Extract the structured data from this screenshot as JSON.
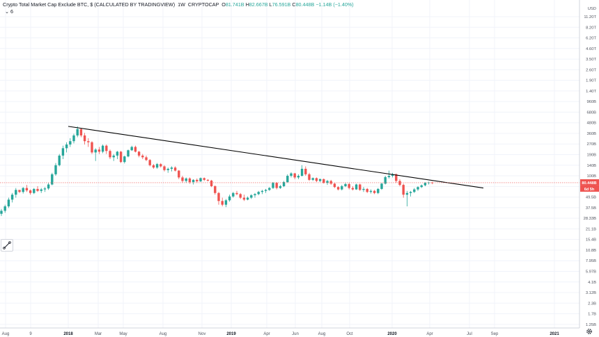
{
  "header": {
    "title": "Crypto Total Market Cap Exclude BTC, $ (CALCULATED BY TRADINGVIEW)",
    "interval": "1W",
    "exchange": "CRYPTOCAP",
    "ohlc": {
      "open_label": "O",
      "open": "81.741B",
      "high_label": "H",
      "high": "82.667B",
      "low_label": "L",
      "low": "76.591B",
      "close_label": "C",
      "close": "80.448B",
      "change": "−1.14B (−1.40%)"
    },
    "indicator_count": "6",
    "currency": "USD"
  },
  "price_scale": {
    "labels": [
      "11.20T",
      "8.20T",
      "6.20T",
      "4.60T",
      "3.50T",
      "2.60T",
      "1.90T",
      "1.40T",
      "960B",
      "680B",
      "480B",
      "360B",
      "270B",
      "190B",
      "140B",
      "100B",
      "65.5B",
      "49.5B",
      "37.5B",
      "28.33B",
      "21.1B",
      "15.4B",
      "10.8B",
      "7.95B",
      "5.97B",
      "4.1B",
      "3.12B",
      "2.3B",
      "1.7B",
      "1.25B"
    ],
    "price_badge": "80.448B",
    "countdown_badge": "6d 5h",
    "last_price": 80.448
  },
  "time_scale": {
    "labels": [
      {
        "text": "Aug",
        "bold": false
      },
      {
        "text": "9",
        "bold": false
      },
      {
        "text": "2018",
        "bold": true
      },
      {
        "text": "Mar",
        "bold": false
      },
      {
        "text": "May",
        "bold": false
      },
      {
        "text": "Aug",
        "bold": false
      },
      {
        "text": "Nov",
        "bold": false
      },
      {
        "text": "2019",
        "bold": true
      },
      {
        "text": "Apr",
        "bold": false
      },
      {
        "text": "Jun",
        "bold": false
      },
      {
        "text": "Aug",
        "bold": false
      },
      {
        "text": "Oct",
        "bold": false
      },
      {
        "text": "2020",
        "bold": true
      },
      {
        "text": "Apr",
        "bold": false
      },
      {
        "text": "Jul",
        "bold": false
      },
      {
        "text": "Sep",
        "bold": false
      },
      {
        "text": "2021",
        "bold": true
      }
    ]
  },
  "colors": {
    "up": "#26a69a",
    "down": "#ef5350",
    "trendline": "#000000",
    "price_line": "#ef5350",
    "grid": "#f0f3fa"
  },
  "icons": {
    "drawing_tool": "trendline-tool-icon",
    "settings": "gear-icon"
  },
  "chart_data": {
    "type": "candlestick",
    "scale": "log",
    "interval": "1W",
    "series": [
      {
        "name": "Crypto Total Market Cap Exclude BTC",
        "ohlc": [
          [
            30,
            35,
            28,
            33
          ],
          [
            33,
            40,
            31,
            38
          ],
          [
            38,
            50,
            36,
            47
          ],
          [
            47,
            58,
            43,
            55
          ],
          [
            55,
            68,
            50,
            64
          ],
          [
            64,
            62,
            58,
            60
          ],
          [
            60,
            70,
            57,
            68
          ],
          [
            68,
            75,
            60,
            63
          ],
          [
            63,
            65,
            55,
            58
          ],
          [
            58,
            68,
            56,
            66
          ],
          [
            66,
            72,
            60,
            62
          ],
          [
            62,
            68,
            58,
            65
          ],
          [
            65,
            70,
            60,
            67
          ],
          [
            67,
            80,
            64,
            76
          ],
          [
            76,
            110,
            74,
            105
          ],
          [
            105,
            150,
            100,
            140
          ],
          [
            140,
            200,
            135,
            190
          ],
          [
            190,
            260,
            170,
            240
          ],
          [
            240,
            290,
            210,
            270
          ],
          [
            270,
            330,
            250,
            300
          ],
          [
            300,
            380,
            280,
            360
          ],
          [
            360,
            480,
            340,
            440
          ],
          [
            440,
            450,
            340,
            360
          ],
          [
            360,
            390,
            270,
            300
          ],
          [
            300,
            330,
            250,
            290
          ],
          [
            290,
            300,
            200,
            210
          ],
          [
            210,
            240,
            160,
            230
          ],
          [
            230,
            250,
            200,
            215
          ],
          [
            215,
            270,
            205,
            260
          ],
          [
            260,
            270,
            200,
            220
          ],
          [
            220,
            230,
            170,
            180
          ],
          [
            180,
            200,
            160,
            190
          ],
          [
            190,
            220,
            170,
            215
          ],
          [
            215,
            220,
            150,
            155
          ],
          [
            155,
            190,
            148,
            185
          ],
          [
            185,
            230,
            180,
            225
          ],
          [
            225,
            260,
            220,
            250
          ],
          [
            250,
            260,
            210,
            215
          ],
          [
            215,
            220,
            180,
            190
          ],
          [
            190,
            200,
            170,
            180
          ],
          [
            180,
            190,
            160,
            165
          ],
          [
            165,
            170,
            135,
            140
          ],
          [
            140,
            145,
            125,
            130
          ],
          [
            130,
            150,
            125,
            145
          ],
          [
            145,
            150,
            130,
            135
          ],
          [
            135,
            140,
            115,
            120
          ],
          [
            120,
            130,
            110,
            125
          ],
          [
            125,
            135,
            115,
            130
          ],
          [
            130,
            135,
            115,
            118
          ],
          [
            118,
            120,
            90,
            95
          ],
          [
            95,
            100,
            80,
            85
          ],
          [
            85,
            95,
            80,
            92
          ],
          [
            92,
            95,
            78,
            82
          ],
          [
            82,
            90,
            76,
            88
          ],
          [
            88,
            92,
            80,
            84
          ],
          [
            84,
            95,
            82,
            93
          ],
          [
            93,
            95,
            85,
            88
          ],
          [
            88,
            90,
            84,
            86
          ],
          [
            86,
            88,
            70,
            72
          ],
          [
            72,
            74,
            55,
            58
          ],
          [
            58,
            60,
            40,
            45
          ],
          [
            45,
            50,
            38,
            40
          ],
          [
            40,
            48,
            37,
            46
          ],
          [
            46,
            55,
            44,
            52
          ],
          [
            52,
            60,
            50,
            58
          ],
          [
            58,
            62,
            54,
            56
          ],
          [
            56,
            58,
            48,
            50
          ],
          [
            50,
            55,
            45,
            47
          ],
          [
            47,
            52,
            46,
            50
          ],
          [
            50,
            56,
            48,
            54
          ],
          [
            54,
            58,
            50,
            56
          ],
          [
            56,
            62,
            54,
            60
          ],
          [
            60,
            64,
            56,
            62
          ],
          [
            62,
            66,
            58,
            64
          ],
          [
            64,
            70,
            62,
            68
          ],
          [
            68,
            82,
            66,
            80
          ],
          [
            80,
            82,
            65,
            68
          ],
          [
            68,
            75,
            66,
            72
          ],
          [
            72,
            85,
            70,
            82
          ],
          [
            82,
            105,
            80,
            100
          ],
          [
            100,
            112,
            95,
            108
          ],
          [
            108,
            110,
            90,
            95
          ],
          [
            95,
            105,
            90,
            100
          ],
          [
            100,
            140,
            98,
            125
          ],
          [
            125,
            135,
            100,
            105
          ],
          [
            105,
            110,
            85,
            88
          ],
          [
            88,
            95,
            85,
            93
          ],
          [
            93,
            95,
            82,
            85
          ],
          [
            85,
            92,
            82,
            90
          ],
          [
            90,
            92,
            78,
            80
          ],
          [
            80,
            88,
            75,
            85
          ],
          [
            85,
            88,
            75,
            78
          ],
          [
            78,
            80,
            68,
            70
          ],
          [
            70,
            72,
            63,
            65
          ],
          [
            65,
            75,
            63,
            72
          ],
          [
            72,
            80,
            70,
            77
          ],
          [
            77,
            80,
            65,
            68
          ],
          [
            68,
            72,
            63,
            65
          ],
          [
            65,
            78,
            64,
            76
          ],
          [
            76,
            78,
            62,
            64
          ],
          [
            64,
            70,
            60,
            66
          ],
          [
            66,
            68,
            58,
            60
          ],
          [
            60,
            65,
            57,
            62
          ],
          [
            62,
            64,
            56,
            58
          ],
          [
            58,
            68,
            56,
            66
          ],
          [
            66,
            80,
            64,
            78
          ],
          [
            78,
            100,
            76,
            96
          ],
          [
            96,
            118,
            92,
            100
          ],
          [
            100,
            110,
            95,
            105
          ],
          [
            105,
            108,
            80,
            85
          ],
          [
            85,
            90,
            72,
            75
          ],
          [
            75,
            78,
            50,
            55
          ],
          [
            55,
            62,
            38,
            58
          ],
          [
            58,
            62,
            52,
            60
          ],
          [
            60,
            68,
            58,
            65
          ],
          [
            65,
            72,
            62,
            70
          ],
          [
            70,
            76,
            68,
            74
          ],
          [
            74,
            82,
            72,
            80
          ],
          [
            80,
            83,
            76,
            81
          ],
          [
            81,
            82.7,
            76.6,
            80.4
          ]
        ]
      }
    ],
    "trendline": {
      "from": {
        "date": "2018-01-08",
        "value": 480
      },
      "to": {
        "date": "2020-07-13",
        "value": 68
      }
    },
    "price_line": {
      "value": 80.448
    }
  }
}
